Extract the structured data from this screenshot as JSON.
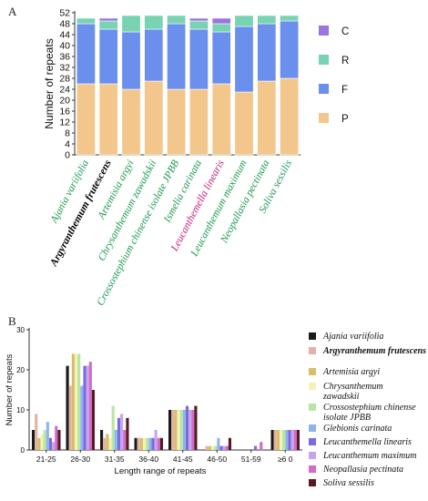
{
  "figure": {
    "panel_a_label": "A",
    "panel_b_label": "B"
  },
  "chart_data": [
    {
      "type": "bar",
      "stacked": true,
      "categories": [
        "Ajania variifolia",
        "Argyranthemum frutescens",
        "Artemisia argyi",
        "Chrysanthemum zawadskii",
        "Crossostephium chinense isolate JPBB",
        "Ismelia carinata",
        "Leucanthemella linearis",
        "Leucanthemum maximum",
        "Neopallasia pectinata",
        "Soliva sessilis"
      ],
      "category_colors": [
        "#1a9850",
        "#000000",
        "#1a9850",
        "#1a9850",
        "#1a9850",
        "#1a9850",
        "#c51b7d",
        "#1a9850",
        "#1a9850",
        "#1a9850"
      ],
      "bold_category": "Argyranthemum frutescens",
      "series": [
        {
          "name": "P",
          "color": "#f3c78c",
          "values": [
            26,
            26,
            24,
            27,
            24,
            24,
            26,
            23,
            27,
            28
          ]
        },
        {
          "name": "F",
          "color": "#6b8fec",
          "values": [
            22,
            20,
            21,
            19,
            24,
            22,
            19,
            24,
            21,
            21
          ]
        },
        {
          "name": "R",
          "color": "#77d3b1",
          "values": [
            2,
            3,
            6,
            5,
            3,
            3,
            3,
            4,
            3,
            2
          ]
        },
        {
          "name": "C",
          "color": "#9b74e0",
          "values": [
            0,
            1,
            0,
            0,
            0,
            1,
            2,
            0,
            0,
            0
          ]
        }
      ],
      "legend_order": [
        "C",
        "R",
        "F",
        "P"
      ],
      "ylabel": "Number of repeats",
      "ylim": [
        0,
        52
      ],
      "yticks": [
        0,
        4,
        8,
        12,
        16,
        20,
        24,
        28,
        32,
        36,
        40,
        44,
        48,
        52
      ],
      "legend_position": "right"
    },
    {
      "type": "bar",
      "grouped": true,
      "categories": [
        "21-25",
        "26-30",
        "31-35",
        "36-40",
        "41-45",
        "46-50",
        "51-59",
        "≥6 0"
      ],
      "xlabel": "Length range of repeats",
      "ylabel": "Number of repeats",
      "ylim": [
        0,
        30
      ],
      "yticks": [
        0,
        10,
        20,
        30
      ],
      "legend_position": "right",
      "series": [
        {
          "name": "Ajania variifolia",
          "bold": false,
          "color": "#1a1a1a",
          "values": [
            5,
            21,
            5,
            3,
            10,
            0,
            0,
            5
          ]
        },
        {
          "name": "Argyranthemum frutescens",
          "bold": true,
          "color": "#e3b2a4",
          "values": [
            9,
            16,
            3,
            3,
            10,
            1,
            0,
            5
          ]
        },
        {
          "name": "Artemisia argyi",
          "bold": false,
          "color": "#d9bd6a",
          "values": [
            3,
            24,
            4,
            3,
            10,
            1,
            0,
            5
          ]
        },
        {
          "name": "Chrysanthemum zawadskii",
          "bold": false,
          "color": "#f2f2b8",
          "values": [
            4,
            24,
            3,
            3,
            10,
            1,
            0,
            5
          ]
        },
        {
          "name": "Crossostephium chinense isolate JPBB",
          "bold": false,
          "color": "#b7e6a3",
          "values": [
            5,
            24,
            11,
            3,
            10,
            1,
            0,
            5
          ]
        },
        {
          "name": "Glebionis carinata",
          "bold": false,
          "color": "#8fb4ec",
          "values": [
            7,
            16,
            5,
            3,
            10,
            3,
            0,
            5
          ]
        },
        {
          "name": "Leucanthemella linearis",
          "bold": false,
          "color": "#7a6be0",
          "values": [
            3,
            21,
            8,
            3,
            11,
            1,
            1,
            5
          ]
        },
        {
          "name": "Leucanthemum maximum",
          "bold": false,
          "color": "#c7a5ec",
          "values": [
            2,
            21,
            9,
            5,
            10,
            1,
            0,
            5
          ]
        },
        {
          "name": "Neopallasia pectinata",
          "bold": false,
          "color": "#d16bc9",
          "values": [
            6,
            22,
            5,
            3,
            10,
            1,
            2,
            5
          ]
        },
        {
          "name": "Soliva sessilis",
          "bold": false,
          "color": "#5a1a22",
          "values": [
            5,
            15,
            8,
            3,
            11,
            3,
            0,
            5
          ]
        }
      ]
    }
  ]
}
